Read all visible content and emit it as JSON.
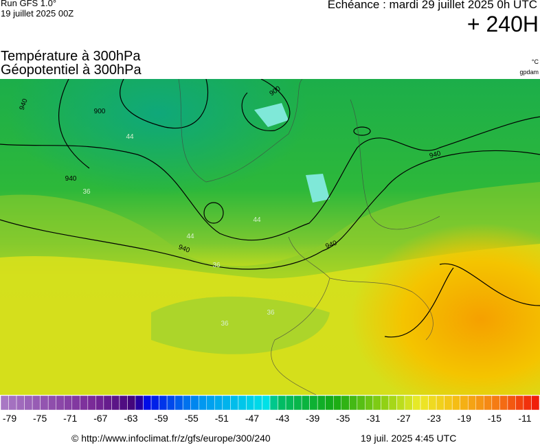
{
  "header": {
    "run": "Run GFS 1.0°",
    "run_date": "19 juillet 2025 00Z",
    "valid": "Echéance : mardi 29 juillet 2025 0h UTC",
    "lead": "+ 240H",
    "title1": "Température à 300hPa",
    "title2": "Géopotentiel à 300hPa",
    "unit_temp": "°C",
    "unit_geo": "gpdam"
  },
  "map": {
    "geopotential_labels": [
      "940",
      "900",
      "900",
      "940",
      "940",
      "940",
      "940"
    ],
    "temperature_labels": [
      "36",
      "44",
      "44",
      "44",
      "36",
      "36",
      "36"
    ]
  },
  "colorbar": {
    "labels": [
      -79,
      -75,
      -71,
      -67,
      -63,
      -59,
      -55,
      -51,
      -47,
      -43,
      -39,
      -35,
      -31,
      -27,
      -23,
      -19,
      -15,
      -11
    ]
  },
  "footer": {
    "source": "© http://www.infoclimat.fr/z/gfs/europe/300/240",
    "generated": "19 juil. 2025  4:45 UTC"
  }
}
